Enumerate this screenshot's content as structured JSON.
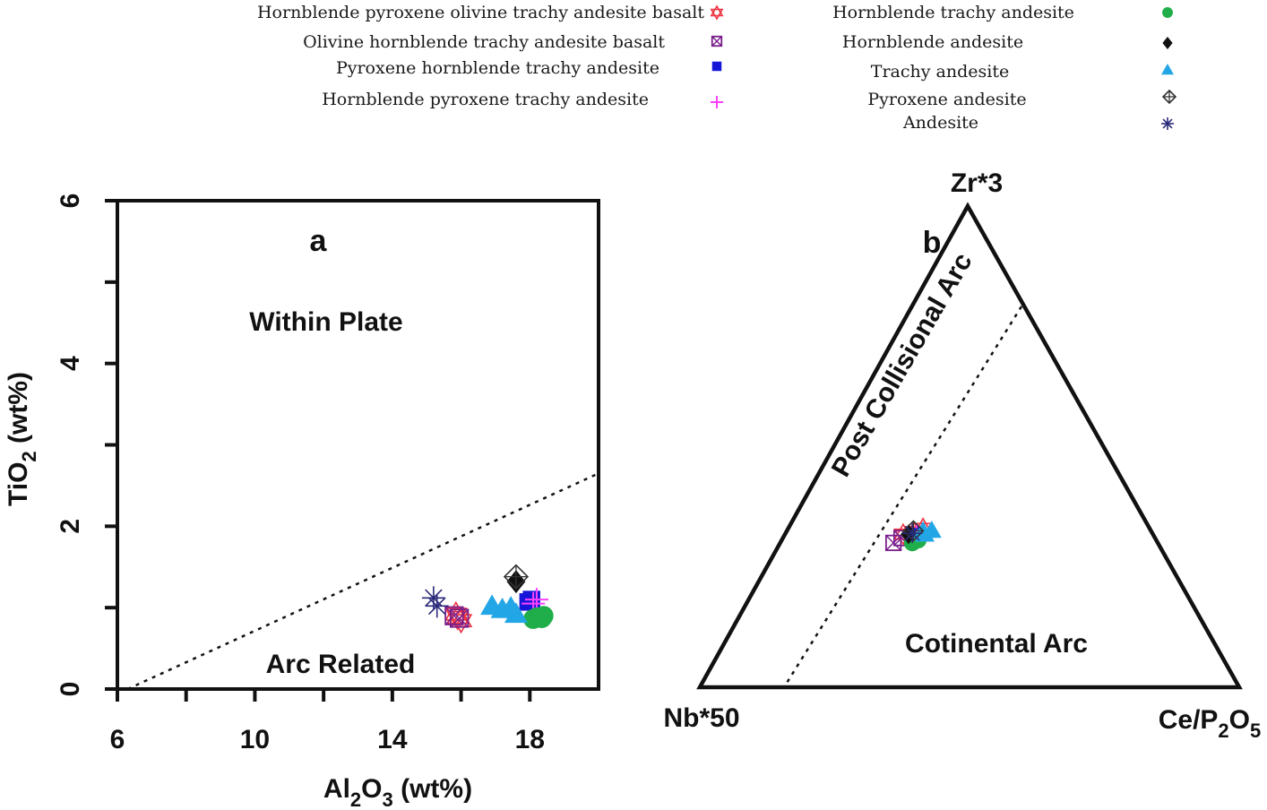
{
  "legend": {
    "items": [
      {
        "label": "Hornblende pyroxene  olivine trachy andesite basalt",
        "symbol": "star-of-david",
        "color": "#ee3340"
      },
      {
        "label": "Olivine hornblende trachy andesite basalt",
        "symbol": "square-x",
        "color": "#7a1f8c"
      },
      {
        "label": "Pyroxene hornblende trachy andesite",
        "symbol": "filled-square",
        "color": "#1616d9"
      },
      {
        "label": "Hornblende pyroxene trachy andesite",
        "symbol": "plus",
        "color": "#ff40ff"
      },
      {
        "label": "Hornblende trachy andesite",
        "symbol": "filled-circle",
        "color": "#1fae4a"
      },
      {
        "label": "Hornblende andesite",
        "symbol": "filled-diamond",
        "color": "#111111"
      },
      {
        "label": "Trachy andesite",
        "symbol": "filled-triangle",
        "color": "#23a6e6"
      },
      {
        "label": "Pyroxene andesite",
        "symbol": "diamond-plus",
        "color": "#333333"
      },
      {
        "label": "Andesite",
        "symbol": "asterisk",
        "color": "#2a2a7a"
      }
    ]
  },
  "chart_data": [
    {
      "type": "scatter",
      "panel_label": "a",
      "xlabel": "Al2O3 (wt%)",
      "xlabel_parts": {
        "a": "Al",
        "sub1": "2",
        "b": "O",
        "sub2": "3",
        "c": " (wt%)"
      },
      "ylabel": "TiO2 (wt%)",
      "ylabel_parts": {
        "a": "TiO",
        "sub1": "2",
        "b": " (wt%)"
      },
      "xlim": [
        6,
        20
      ],
      "ylim": [
        0,
        6
      ],
      "xticks": [
        6,
        10,
        14,
        18
      ],
      "yticks": [
        0,
        2,
        4,
        6
      ],
      "xtick_labels": [
        "6",
        "10",
        "14",
        "18"
      ],
      "ytick_labels": [
        "0",
        "2",
        "4",
        "6"
      ],
      "field_labels": [
        "Within Plate",
        "Arc Related"
      ],
      "boundary_line": {
        "style": "dotted",
        "from": [
          6.3,
          0
        ],
        "to": [
          20,
          2.65
        ]
      },
      "series": [
        {
          "name": "Hornblende pyroxene  olivine trachy andesite basalt",
          "points": [
            [
              15.9,
              0.88
            ],
            [
              16.0,
              0.84
            ],
            [
              15.85,
              0.92
            ]
          ]
        },
        {
          "name": "Olivine hornblende trachy andesite basalt",
          "points": [
            [
              15.8,
              0.9
            ],
            [
              15.95,
              0.87
            ]
          ]
        },
        {
          "name": "Pyroxene hornblende trachy andesite",
          "points": [
            [
              17.95,
              1.07
            ],
            [
              18.05,
              1.1
            ]
          ]
        },
        {
          "name": "Hornblende pyroxene trachy andesite",
          "points": [
            [
              18.1,
              1.05
            ],
            [
              18.2,
              1.1
            ]
          ]
        },
        {
          "name": "Hornblende trachy andesite",
          "points": [
            [
              18.2,
              0.88
            ],
            [
              18.35,
              0.87
            ],
            [
              18.1,
              0.86
            ],
            [
              18.4,
              0.9
            ]
          ]
        },
        {
          "name": "Hornblende andesite",
          "points": [
            [
              17.6,
              1.32
            ]
          ]
        },
        {
          "name": "Trachy andesite",
          "points": [
            [
              16.9,
              1.02
            ],
            [
              17.2,
              0.98
            ],
            [
              17.6,
              0.92
            ],
            [
              17.45,
              1.0
            ]
          ]
        },
        {
          "name": "Pyroxene andesite",
          "points": [
            [
              17.6,
              1.38
            ]
          ]
        },
        {
          "name": "Andesite",
          "points": [
            [
              15.2,
              1.12
            ],
            [
              15.3,
              1.02
            ]
          ]
        }
      ]
    },
    {
      "type": "scatter",
      "panel_label": "b",
      "diagram": "ternary",
      "vertices": {
        "top": "Zr*3",
        "left": "Nb*50",
        "right": "Ce/P2O5"
      },
      "vertex_right_parts": {
        "a": "Ce/P",
        "sub1": "2",
        "b": "O",
        "sub2": "5"
      },
      "field_labels": [
        "Post Collisional Arc",
        "Cotinental Arc"
      ],
      "boundary_line": {
        "style": "dotted"
      },
      "series": [
        {
          "name": "Hornblende pyroxene  olivine trachy andesite basalt",
          "points": [
            [
              0.575,
              0.323
            ],
            [
              0.56,
              0.318
            ],
            [
              0.585,
              0.33
            ]
          ]
        },
        {
          "name": "Olivine hornblende trachy andesite basalt",
          "points": [
            [
              0.56,
              0.3
            ],
            [
              0.565,
              0.31
            ]
          ]
        },
        {
          "name": "Pyroxene hornblende trachy andesite",
          "points": [
            [
              0.59,
              0.316
            ]
          ]
        },
        {
          "name": "Hornblende pyroxene trachy andesite",
          "points": [
            [
              0.585,
              0.318
            ]
          ]
        },
        {
          "name": "Hornblende trachy andesite",
          "points": [
            [
              0.595,
              0.3
            ],
            [
              0.6,
              0.306
            ]
          ]
        },
        {
          "name": "Hornblende andesite",
          "points": [
            [
              0.57,
              0.318
            ]
          ]
        },
        {
          "name": "Trachy andesite",
          "points": [
            [
              0.605,
              0.326
            ],
            [
              0.59,
              0.325
            ],
            [
              0.6,
              0.318
            ]
          ]
        },
        {
          "name": "Pyroxene andesite",
          "points": [
            [
              0.572,
              0.325
            ]
          ]
        },
        {
          "name": "Andesite",
          "points": [
            [
              0.575,
              0.32
            ]
          ]
        }
      ]
    }
  ]
}
